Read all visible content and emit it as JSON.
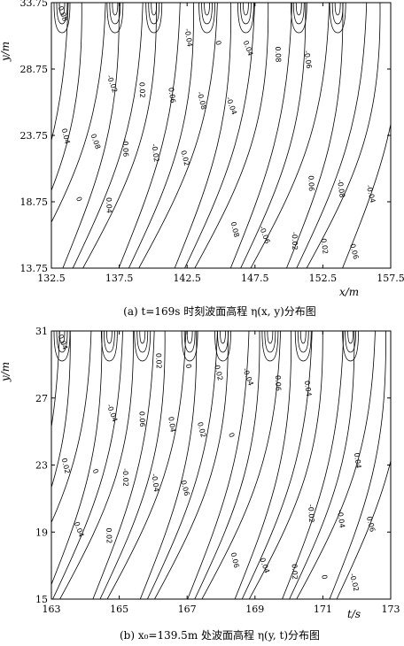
{
  "chart_data": [
    {
      "type": "contour",
      "caption": "(a) t=169s 时刻波面高程 η(x, y)分布图",
      "xlabel": "x/m",
      "ylabel": "y/m",
      "xlim": [
        132.5,
        157.5
      ],
      "ylim": [
        13.75,
        33.75
      ],
      "xticks": [
        "132.5",
        "137.5",
        "142.5",
        "147.5",
        "152.5",
        "157.5"
      ],
      "yticks": [
        "13.75",
        "18.75",
        "23.75",
        "28.75",
        "33.75"
      ],
      "contour_levels": [
        "-0.08",
        "-0.06",
        "-0.04",
        "-0.02",
        "0",
        "0.02",
        "0.04",
        "0.06",
        "0.08"
      ]
    },
    {
      "type": "contour",
      "caption": "(b) x₀=139.5m 处波面高程 η(y, t)分布图",
      "xlabel": "t/s",
      "ylabel": "y/m",
      "xlim": [
        163,
        173
      ],
      "ylim": [
        15,
        33
      ],
      "xticks": [
        "163",
        "165",
        "167",
        "169",
        "171",
        "173"
      ],
      "yticks": [
        "15",
        "19",
        "23",
        "27",
        "31"
      ],
      "contour_levels": [
        "-0.04",
        "-0.02",
        "0",
        "0.02",
        "0.04",
        "0.06"
      ]
    }
  ]
}
